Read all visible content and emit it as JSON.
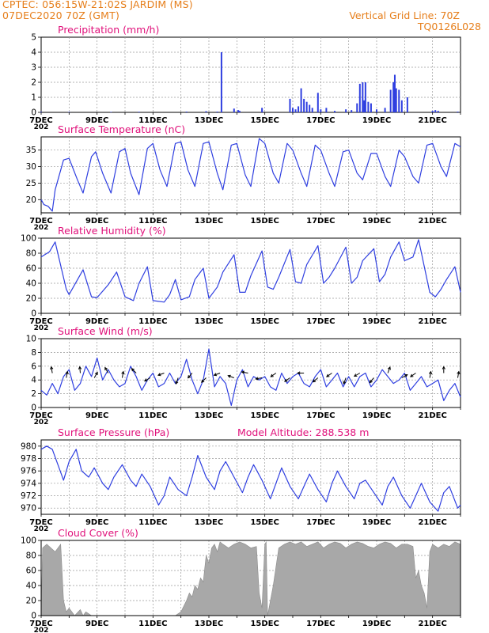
{
  "header": {
    "line1": "CPTEC:   056:15W-21:02S   JARDIM (MS)",
    "line2": "07DEC2020 70Z (GMT)",
    "right1": "Vertical Grid Line: 70Z",
    "right2": "TQ0126L028"
  },
  "colors": {
    "header": "#e67e1a",
    "title": "#e0107a",
    "line": "#2f3fe0",
    "cloud": "#a8a8a8",
    "grid": "#9a9a9a"
  },
  "x_axis": {
    "date_labels": [
      "7DEC",
      "9DEC",
      "11DEC",
      "13DEC",
      "15DEC",
      "17DEC",
      "19DEC",
      "21DEC"
    ],
    "day_start": 7,
    "day_end": 22,
    "clipped_label": "202"
  },
  "chart_data": [
    {
      "id": "precip",
      "type": "bar",
      "title": "Precipitation (mm/h)",
      "ylim": [
        0,
        5
      ],
      "yticks": [
        "0",
        "1",
        "2",
        "3",
        "4",
        "5"
      ],
      "bars": [
        {
          "day": 7.0,
          "value": 0.04
        },
        {
          "day": 8.0,
          "value": 0.03
        },
        {
          "day": 9.5,
          "value": 0.03
        },
        {
          "day": 10.5,
          "value": 0.04
        },
        {
          "day": 12.2,
          "value": 0.05
        },
        {
          "day": 12.9,
          "value": 0.08
        },
        {
          "day": 13.3,
          "value": 0.05
        },
        {
          "day": 13.45,
          "value": 4.0
        },
        {
          "day": 13.9,
          "value": 0.25
        },
        {
          "day": 14.05,
          "value": 0.15
        },
        {
          "day": 14.1,
          "value": 0.1
        },
        {
          "day": 14.9,
          "value": 0.3
        },
        {
          "day": 15.9,
          "value": 0.9
        },
        {
          "day": 16.0,
          "value": 0.3
        },
        {
          "day": 16.1,
          "value": 0.2
        },
        {
          "day": 16.2,
          "value": 0.4
        },
        {
          "day": 16.3,
          "value": 1.6
        },
        {
          "day": 16.4,
          "value": 0.9
        },
        {
          "day": 16.5,
          "value": 0.7
        },
        {
          "day": 16.6,
          "value": 0.5
        },
        {
          "day": 16.7,
          "value": 0.3
        },
        {
          "day": 16.9,
          "value": 1.3
        },
        {
          "day": 17.0,
          "value": 0.2
        },
        {
          "day": 17.2,
          "value": 0.3
        },
        {
          "day": 17.5,
          "value": 0.1
        },
        {
          "day": 17.9,
          "value": 0.2
        },
        {
          "day": 18.1,
          "value": 0.15
        },
        {
          "day": 18.3,
          "value": 0.6
        },
        {
          "day": 18.4,
          "value": 1.9
        },
        {
          "day": 18.5,
          "value": 2.0
        },
        {
          "day": 18.55,
          "value": 0.8
        },
        {
          "day": 18.6,
          "value": 2.0
        },
        {
          "day": 18.7,
          "value": 0.7
        },
        {
          "day": 18.8,
          "value": 0.6
        },
        {
          "day": 19.0,
          "value": 0.2
        },
        {
          "day": 19.3,
          "value": 0.3
        },
        {
          "day": 19.5,
          "value": 1.5
        },
        {
          "day": 19.6,
          "value": 2.0
        },
        {
          "day": 19.65,
          "value": 2.5
        },
        {
          "day": 19.7,
          "value": 1.6
        },
        {
          "day": 19.8,
          "value": 1.5
        },
        {
          "day": 19.9,
          "value": 0.8
        },
        {
          "day": 20.1,
          "value": 1.0
        },
        {
          "day": 21.0,
          "value": 0.1
        },
        {
          "day": 21.1,
          "value": 0.15
        },
        {
          "day": 21.2,
          "value": 0.1
        },
        {
          "day": 21.9,
          "value": 0.05
        }
      ]
    },
    {
      "id": "temp",
      "type": "line",
      "title": "Surface Temperature (nC)",
      "ylim": [
        16,
        39
      ],
      "yticks": [
        "20",
        "25",
        "30",
        "35"
      ],
      "ytick_values": [
        20,
        25,
        30,
        35
      ],
      "x": [
        7.0,
        7.1,
        7.25,
        7.4,
        7.5,
        7.8,
        8.0,
        8.3,
        8.5,
        8.8,
        8.95,
        9.2,
        9.5,
        9.8,
        10.0,
        10.2,
        10.5,
        10.8,
        11.0,
        11.25,
        11.5,
        11.8,
        12.0,
        12.25,
        12.5,
        12.8,
        13.0,
        13.3,
        13.5,
        13.8,
        14.0,
        14.3,
        14.5,
        14.8,
        15.0,
        15.3,
        15.5,
        15.8,
        16.0,
        16.3,
        16.5,
        16.8,
        17.0,
        17.3,
        17.5,
        17.8,
        18.0,
        18.3,
        18.5,
        18.8,
        19.0,
        19.3,
        19.5,
        19.8,
        20.0,
        20.3,
        20.5,
        20.8,
        21.0,
        21.3,
        21.5,
        21.8,
        22.0
      ],
      "y": [
        20.0,
        18.5,
        18.0,
        16.5,
        23.0,
        32.0,
        32.5,
        26.0,
        22.0,
        33.0,
        34.5,
        28.0,
        22.0,
        34.5,
        35.5,
        28.0,
        21.5,
        35.5,
        37.0,
        29.0,
        24.0,
        37.0,
        37.5,
        29.0,
        24.0,
        37.0,
        37.5,
        28.0,
        23.0,
        36.5,
        37.0,
        27.5,
        24.0,
        38.5,
        37.0,
        28.0,
        25.0,
        37.0,
        35.0,
        28.0,
        24.0,
        36.5,
        35.0,
        28.0,
        24.0,
        34.5,
        35.0,
        28.0,
        26.0,
        34.0,
        34.0,
        27.0,
        24.0,
        35.0,
        33.0,
        27.0,
        25.0,
        36.5,
        37.0,
        30.0,
        27.0,
        37.0,
        36.0
      ]
    },
    {
      "id": "rh",
      "type": "line",
      "title": "Relative Humidity (%)",
      "ylim": [
        0,
        100
      ],
      "yticks": [
        "0",
        "20",
        "40",
        "60",
        "80",
        "100"
      ],
      "ytick_values": [
        0,
        20,
        40,
        60,
        80,
        100
      ],
      "x": [
        7.0,
        7.3,
        7.5,
        7.9,
        8.0,
        8.5,
        8.8,
        9.0,
        9.4,
        9.7,
        10.0,
        10.3,
        10.5,
        10.8,
        11.0,
        11.4,
        11.6,
        11.8,
        12.0,
        12.3,
        12.5,
        12.8,
        13.0,
        13.3,
        13.5,
        13.9,
        14.1,
        14.3,
        14.5,
        14.9,
        15.1,
        15.3,
        15.5,
        15.9,
        16.1,
        16.3,
        16.5,
        16.9,
        17.1,
        17.3,
        17.5,
        17.9,
        18.1,
        18.3,
        18.5,
        18.9,
        19.1,
        19.3,
        19.5,
        19.8,
        20.0,
        20.3,
        20.5,
        20.9,
        21.1,
        21.3,
        21.5,
        21.8,
        22.0
      ],
      "y": [
        75.0,
        82.0,
        95.0,
        32.0,
        25.0,
        58.0,
        22.0,
        21.0,
        38.0,
        55.0,
        22.0,
        17.0,
        40.0,
        62.0,
        17.0,
        15.0,
        25.0,
        45.0,
        18.0,
        22.0,
        45.0,
        60.0,
        20.0,
        35.0,
        55.0,
        78.0,
        28.0,
        28.0,
        50.0,
        83.0,
        35.0,
        32.0,
        48.0,
        85.0,
        42.0,
        40.0,
        65.0,
        90.0,
        40.0,
        48.0,
        60.0,
        88.0,
        40.0,
        48.0,
        70.0,
        86.0,
        42.0,
        52.0,
        75.0,
        95.0,
        70.0,
        75.0,
        98.0,
        28.0,
        22.0,
        32.0,
        45.0,
        62.0,
        28.0
      ]
    },
    {
      "id": "wind",
      "type": "line",
      "title": "Surface Wind (m/s)",
      "ylim": [
        0,
        10
      ],
      "yticks": [
        "0",
        "2",
        "4",
        "6",
        "8",
        "10"
      ],
      "ytick_values": [
        0,
        2,
        4,
        6,
        8,
        10
      ],
      "x": [
        7.0,
        7.2,
        7.4,
        7.6,
        7.8,
        8.0,
        8.2,
        8.4,
        8.6,
        8.8,
        9.0,
        9.2,
        9.4,
        9.6,
        9.8,
        10.0,
        10.2,
        10.4,
        10.6,
        10.8,
        11.0,
        11.2,
        11.4,
        11.6,
        11.8,
        12.0,
        12.2,
        12.4,
        12.6,
        12.8,
        13.0,
        13.2,
        13.4,
        13.6,
        13.8,
        14.0,
        14.2,
        14.4,
        14.6,
        14.8,
        15.0,
        15.2,
        15.4,
        15.6,
        15.8,
        16.0,
        16.2,
        16.4,
        16.6,
        16.8,
        17.0,
        17.2,
        17.4,
        17.6,
        17.8,
        18.0,
        18.2,
        18.4,
        18.6,
        18.8,
        19.0,
        19.2,
        19.4,
        19.6,
        19.8,
        20.0,
        20.2,
        20.4,
        20.6,
        20.8,
        21.0,
        21.2,
        21.4,
        21.6,
        21.8,
        22.0
      ],
      "y": [
        2.5,
        1.8,
        3.5,
        2.0,
        4.5,
        5.5,
        2.5,
        3.5,
        6.0,
        4.5,
        7.2,
        4.0,
        5.5,
        4.0,
        3.0,
        3.5,
        6.0,
        4.5,
        2.5,
        4.0,
        5.0,
        3.0,
        3.5,
        5.0,
        3.5,
        4.5,
        7.0,
        4.0,
        2.0,
        4.0,
        8.5,
        3.0,
        4.5,
        3.5,
        0.3,
        4.0,
        5.5,
        3.0,
        4.5,
        4.0,
        4.5,
        3.0,
        2.5,
        5.0,
        3.5,
        4.5,
        5.0,
        3.5,
        3.0,
        4.5,
        5.5,
        3.0,
        4.0,
        5.0,
        3.0,
        4.5,
        3.0,
        4.5,
        5.0,
        3.0,
        4.0,
        5.5,
        4.5,
        3.5,
        4.0,
        5.0,
        2.5,
        3.5,
        4.5,
        3.0,
        3.5,
        4.0,
        1.0,
        2.5,
        3.5,
        1.5
      ],
      "arrow_days": [
        7.4,
        7.9,
        8.4,
        8.9,
        9.4,
        9.9,
        10.4,
        10.9,
        11.4,
        11.9,
        12.4,
        12.9,
        13.4,
        13.9,
        14.4,
        14.9,
        15.4,
        15.9,
        16.4,
        16.9,
        17.4,
        17.9,
        18.4,
        18.9,
        19.4,
        19.9,
        20.4,
        20.9,
        21.4,
        21.9
      ],
      "arrow_dirs_deg": [
        100,
        80,
        95,
        60,
        120,
        80,
        135,
        210,
        200,
        250,
        230,
        225,
        200,
        160,
        170,
        190,
        215,
        215,
        180,
        220,
        215,
        250,
        210,
        230,
        70,
        30,
        215,
        80,
        90,
        80
      ]
    },
    {
      "id": "press",
      "type": "line",
      "title": "Surface Pressure (hPa)",
      "subtitle": "Model Altitude: 288.538 m",
      "ylim": [
        969,
        981
      ],
      "yticks": [
        "970",
        "972",
        "974",
        "976",
        "978",
        "980"
      ],
      "ytick_values": [
        970,
        972,
        974,
        976,
        978,
        980
      ],
      "x": [
        7.0,
        7.2,
        7.4,
        7.6,
        7.8,
        8.0,
        8.25,
        8.45,
        8.7,
        8.9,
        9.2,
        9.4,
        9.6,
        9.9,
        10.2,
        10.4,
        10.6,
        10.9,
        11.2,
        11.4,
        11.6,
        11.9,
        12.2,
        12.4,
        12.6,
        12.9,
        13.2,
        13.4,
        13.6,
        13.9,
        14.2,
        14.4,
        14.6,
        14.9,
        15.2,
        15.4,
        15.6,
        15.9,
        16.2,
        16.4,
        16.6,
        16.9,
        17.2,
        17.4,
        17.6,
        17.9,
        18.2,
        18.4,
        18.6,
        18.9,
        19.2,
        19.4,
        19.6,
        19.9,
        20.2,
        20.4,
        20.6,
        20.9,
        21.2,
        21.4,
        21.6,
        21.9,
        22.0
      ],
      "y": [
        979.5,
        980.0,
        979.5,
        977.0,
        974.5,
        977.5,
        979.5,
        976.0,
        975.0,
        976.5,
        974.0,
        973.0,
        975.0,
        977.0,
        974.5,
        973.5,
        975.5,
        973.5,
        970.5,
        972.0,
        975.0,
        973.0,
        972.0,
        975.0,
        978.5,
        975.0,
        973.0,
        976.0,
        977.5,
        975.0,
        972.5,
        975.0,
        977.0,
        974.5,
        971.5,
        974.0,
        976.5,
        973.5,
        971.5,
        973.5,
        975.5,
        973.0,
        971.0,
        974.0,
        976.0,
        973.5,
        971.5,
        974.0,
        974.5,
        972.5,
        970.5,
        973.5,
        975.0,
        972.0,
        970.0,
        972.0,
        974.0,
        971.0,
        969.5,
        972.5,
        973.5,
        970.0,
        970.5
      ]
    },
    {
      "id": "cloud",
      "type": "area",
      "title": "Cloud Cover (%)",
      "ylim": [
        0,
        100
      ],
      "yticks": [
        "0",
        "20",
        "40",
        "60",
        "80",
        "100"
      ],
      "ytick_values": [
        0,
        20,
        40,
        60,
        80,
        100
      ],
      "x": [
        7.0,
        7.05,
        7.2,
        7.5,
        7.7,
        7.8,
        7.9,
        8.0,
        8.2,
        8.4,
        8.5,
        8.6,
        8.8,
        9.5,
        10.5,
        11.5,
        11.8,
        12.0,
        12.2,
        12.3,
        12.4,
        12.5,
        12.6,
        12.7,
        12.8,
        12.9,
        13.0,
        13.1,
        13.2,
        13.3,
        13.4,
        13.5,
        13.7,
        13.9,
        14.1,
        14.3,
        14.5,
        14.7,
        14.8,
        14.9,
        15.0,
        15.05,
        15.1,
        15.3,
        15.5,
        15.7,
        15.9,
        16.1,
        16.3,
        16.5,
        16.7,
        16.9,
        17.1,
        17.3,
        17.5,
        17.7,
        17.9,
        18.1,
        18.3,
        18.5,
        18.7,
        18.9,
        19.1,
        19.3,
        19.5,
        19.7,
        19.9,
        20.1,
        20.3,
        20.4,
        20.5,
        20.6,
        20.7,
        20.8,
        20.9,
        21.0,
        21.2,
        21.4,
        21.6,
        21.8,
        22.0
      ],
      "y": [
        0,
        90,
        95,
        85,
        95,
        20,
        5,
        10,
        0,
        8,
        0,
        5,
        0,
        0,
        0,
        0,
        0,
        5,
        20,
        30,
        25,
        40,
        35,
        50,
        45,
        80,
        70,
        90,
        95,
        85,
        98,
        95,
        90,
        95,
        98,
        95,
        90,
        92,
        30,
        10,
        95,
        98,
        0,
        40,
        90,
        95,
        98,
        95,
        98,
        92,
        95,
        98,
        90,
        95,
        98,
        96,
        90,
        95,
        98,
        96,
        92,
        90,
        95,
        98,
        96,
        90,
        95,
        95,
        92,
        50,
        60,
        40,
        30,
        10,
        85,
        95,
        90,
        95,
        92,
        98,
        95
      ]
    }
  ]
}
